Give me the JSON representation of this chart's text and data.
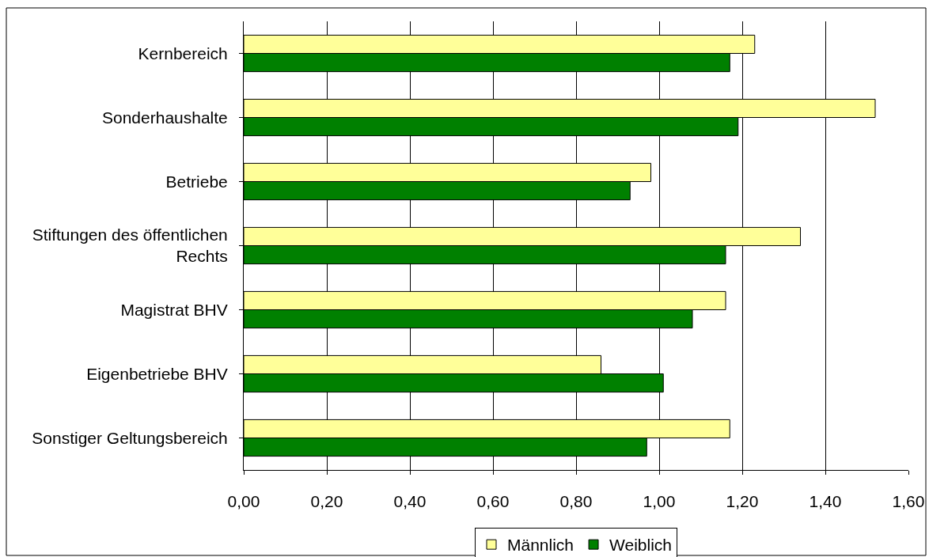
{
  "chart_data": {
    "type": "bar",
    "orientation": "horizontal",
    "categories": [
      "Kernbereich",
      "Sonderhaushalte",
      "Betriebe",
      "Stiftungen des öffentlichen Rechts",
      "Magistrat BHV",
      "Eigenbetriebe BHV",
      "Sonstiger Geltungsbereich"
    ],
    "series": [
      {
        "name": "Männlich",
        "color": "#ffff99",
        "values": [
          1.23,
          1.52,
          0.98,
          1.34,
          1.16,
          0.86,
          1.17
        ]
      },
      {
        "name": "Weiblich",
        "color": "#008000",
        "values": [
          1.17,
          1.19,
          0.93,
          1.16,
          1.08,
          1.01,
          0.97
        ]
      }
    ],
    "xlim": [
      0,
      1.6
    ],
    "xticks": [
      {
        "value": 0,
        "label": "0,00"
      },
      {
        "value": 0.2,
        "label": "0,20"
      },
      {
        "value": 0.4,
        "label": "0,40"
      },
      {
        "value": 0.6,
        "label": "0,60"
      },
      {
        "value": 0.8,
        "label": "0,80"
      },
      {
        "value": 1.0,
        "label": "1,00"
      },
      {
        "value": 1.2,
        "label": "1,20"
      },
      {
        "value": 1.4,
        "label": "1,40"
      },
      {
        "value": 1.6,
        "label": "1,60"
      }
    ],
    "grid": "x",
    "legend": "bottom"
  }
}
